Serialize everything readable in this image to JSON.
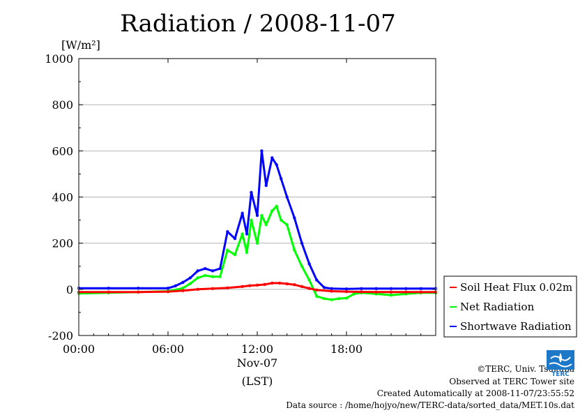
{
  "chart_data": {
    "type": "line",
    "title": "Radiation / 2008-11-07",
    "ylabel": "[W/m²]",
    "xlabel_date": "Nov-07",
    "xlabel_unit": "(LST)",
    "xlim": [
      0,
      24
    ],
    "ylim": [
      -200,
      1000
    ],
    "x_ticks": [
      0,
      6,
      12,
      18
    ],
    "x_tick_labels": [
      "00:00",
      "06:00",
      "12:00",
      "18:00"
    ],
    "y_ticks": [
      -200,
      0,
      200,
      400,
      600,
      800,
      1000
    ],
    "y_tick_labels": [
      "-200",
      "0",
      "200",
      "400",
      "600",
      "800",
      "1000"
    ],
    "grid": "horizontal",
    "legend_position": "right",
    "series": [
      {
        "name": "Soil Heat Flux 0.02m",
        "color": "#ff0000",
        "x": [
          0,
          2,
          4,
          6,
          7,
          8,
          9,
          10,
          11,
          11.5,
          12,
          12.5,
          13,
          13.5,
          14,
          14.5,
          15,
          15.5,
          16,
          17,
          18,
          19,
          20,
          21,
          22,
          23,
          24
        ],
        "y": [
          -12,
          -12,
          -12,
          -10,
          -6,
          0,
          3,
          6,
          12,
          16,
          18,
          21,
          27,
          27,
          24,
          20,
          12,
          4,
          -3,
          -8,
          -10,
          -11,
          -12,
          -12,
          -12,
          -12,
          -12
        ]
      },
      {
        "name": "Net Radiation",
        "color": "#00ff00",
        "x": [
          0,
          2,
          4,
          6,
          7,
          7.5,
          8,
          8.5,
          9,
          9.5,
          10,
          10.5,
          11,
          11.3,
          11.6,
          12,
          12.3,
          12.6,
          13,
          13.3,
          13.6,
          14,
          14.5,
          15,
          15.5,
          16,
          16.5,
          17,
          17.5,
          18,
          18.5,
          19,
          20,
          21,
          22,
          23,
          24
        ],
        "y": [
          -18,
          -15,
          -12,
          -8,
          5,
          25,
          50,
          60,
          55,
          55,
          170,
          150,
          240,
          160,
          300,
          200,
          320,
          280,
          340,
          360,
          300,
          280,
          170,
          100,
          40,
          -30,
          -40,
          -45,
          -40,
          -38,
          -20,
          -15,
          -20,
          -25,
          -20,
          -15,
          -15
        ]
      },
      {
        "name": "Shortwave Radiation",
        "color": "#0000ff",
        "x": [
          0,
          2,
          4,
          6,
          6.5,
          7,
          7.5,
          8,
          8.5,
          9,
          9.5,
          10,
          10.5,
          11,
          11.3,
          11.6,
          12,
          12.3,
          12.6,
          13,
          13.3,
          13.6,
          14,
          14.5,
          15,
          15.5,
          16,
          16.5,
          17,
          18,
          19,
          20,
          21,
          22,
          23,
          24
        ],
        "y": [
          5,
          5,
          5,
          5,
          15,
          30,
          50,
          80,
          90,
          80,
          90,
          250,
          220,
          330,
          240,
          420,
          320,
          600,
          450,
          570,
          540,
          480,
          400,
          310,
          200,
          110,
          40,
          8,
          3,
          2,
          3,
          3,
          3,
          3,
          3,
          3
        ]
      }
    ]
  },
  "credits": {
    "line1": "©TERC, Univ. Tsukuba",
    "line2": "Observed at TERC Tower site",
    "line3": "Created Automatically at 2008-11-07/23:55:52",
    "line4": "Data source : /home/hojyo/new/TERC-data/sorted_data/MET.10s.dat"
  },
  "logo": {
    "text": "TERC",
    "color": "#1e78c8"
  }
}
